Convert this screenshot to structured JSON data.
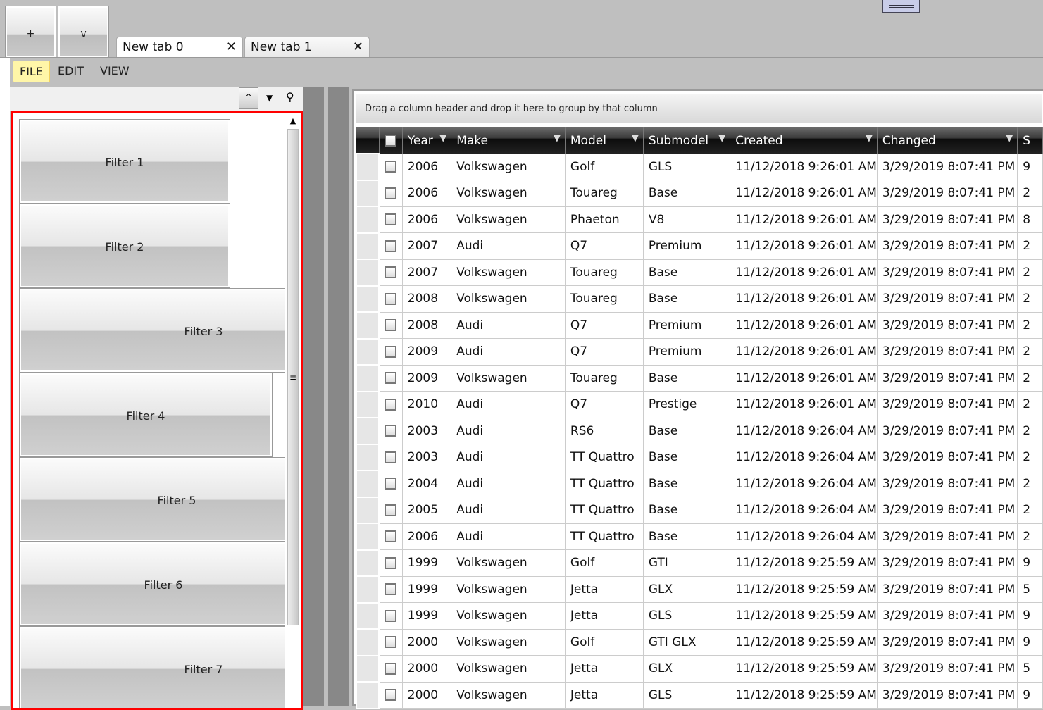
{
  "toolbar": {
    "add_label": "+",
    "dropdown_label": "v"
  },
  "tabs": [
    {
      "label": "New tab 0"
    },
    {
      "label": "New tab 1"
    }
  ],
  "menu": {
    "items": [
      {
        "label": "FILE"
      },
      {
        "label": "EDIT"
      },
      {
        "label": "VIEW"
      }
    ]
  },
  "panel": {
    "collapse_label": "^",
    "filters": [
      {
        "label": "Filter 1"
      },
      {
        "label": "Filter 2"
      },
      {
        "label": "Filter 3"
      },
      {
        "label": "Filter 4"
      },
      {
        "label": "Filter 5"
      },
      {
        "label": "Filter 6"
      },
      {
        "label": "Filter 7"
      }
    ]
  },
  "grid": {
    "group_hint": "Drag a column header and drop it here to group by that column",
    "columns": [
      "Year",
      "Make",
      "Model",
      "Submodel",
      "Created",
      "Changed",
      "S"
    ],
    "rows": [
      [
        "2006",
        "Volkswagen",
        "Golf",
        "GLS",
        "11/12/2018 9:26:01 AM",
        "3/29/2019 8:07:41 PM",
        "9"
      ],
      [
        "2006",
        "Volkswagen",
        "Touareg",
        "Base",
        "11/12/2018 9:26:01 AM",
        "3/29/2019 8:07:41 PM",
        "2"
      ],
      [
        "2006",
        "Volkswagen",
        "Phaeton",
        "V8",
        "11/12/2018 9:26:01 AM",
        "3/29/2019 8:07:41 PM",
        "8"
      ],
      [
        "2007",
        "Audi",
        "Q7",
        "Premium",
        "11/12/2018 9:26:01 AM",
        "3/29/2019 8:07:41 PM",
        "2"
      ],
      [
        "2007",
        "Volkswagen",
        "Touareg",
        "Base",
        "11/12/2018 9:26:01 AM",
        "3/29/2019 8:07:41 PM",
        "2"
      ],
      [
        "2008",
        "Volkswagen",
        "Touareg",
        "Base",
        "11/12/2018 9:26:01 AM",
        "3/29/2019 8:07:41 PM",
        "2"
      ],
      [
        "2008",
        "Audi",
        "Q7",
        "Premium",
        "11/12/2018 9:26:01 AM",
        "3/29/2019 8:07:41 PM",
        "2"
      ],
      [
        "2009",
        "Audi",
        "Q7",
        "Premium",
        "11/12/2018 9:26:01 AM",
        "3/29/2019 8:07:41 PM",
        "2"
      ],
      [
        "2009",
        "Volkswagen",
        "Touareg",
        "Base",
        "11/12/2018 9:26:01 AM",
        "3/29/2019 8:07:41 PM",
        "2"
      ],
      [
        "2010",
        "Audi",
        "Q7",
        "Prestige",
        "11/12/2018 9:26:01 AM",
        "3/29/2019 8:07:41 PM",
        "2"
      ],
      [
        "2003",
        "Audi",
        "RS6",
        "Base",
        "11/12/2018 9:26:04 AM",
        "3/29/2019 8:07:41 PM",
        "2"
      ],
      [
        "2003",
        "Audi",
        "TT Quattro",
        "Base",
        "11/12/2018 9:26:04 AM",
        "3/29/2019 8:07:41 PM",
        "2"
      ],
      [
        "2004",
        "Audi",
        "TT Quattro",
        "Base",
        "11/12/2018 9:26:04 AM",
        "3/29/2019 8:07:41 PM",
        "2"
      ],
      [
        "2005",
        "Audi",
        "TT Quattro",
        "Base",
        "11/12/2018 9:26:04 AM",
        "3/29/2019 8:07:41 PM",
        "2"
      ],
      [
        "2006",
        "Audi",
        "TT Quattro",
        "Base",
        "11/12/2018 9:26:04 AM",
        "3/29/2019 8:07:41 PM",
        "2"
      ],
      [
        "1999",
        "Volkswagen",
        "Golf",
        "GTI",
        "11/12/2018 9:25:59 AM",
        "3/29/2019 8:07:41 PM",
        "9"
      ],
      [
        "1999",
        "Volkswagen",
        "Jetta",
        "GLX",
        "11/12/2018 9:25:59 AM",
        "3/29/2019 8:07:41 PM",
        "5"
      ],
      [
        "1999",
        "Volkswagen",
        "Jetta",
        "GLS",
        "11/12/2018 9:25:59 AM",
        "3/29/2019 8:07:41 PM",
        "9"
      ],
      [
        "2000",
        "Volkswagen",
        "Golf",
        "GTI GLX",
        "11/12/2018 9:25:59 AM",
        "3/29/2019 8:07:41 PM",
        "9"
      ],
      [
        "2000",
        "Volkswagen",
        "Jetta",
        "GLX",
        "11/12/2018 9:25:59 AM",
        "3/29/2019 8:07:41 PM",
        "5"
      ],
      [
        "2000",
        "Volkswagen",
        "Jetta",
        "GLS",
        "11/12/2018 9:25:59 AM",
        "3/29/2019 8:07:41 PM",
        "9"
      ]
    ]
  },
  "colors": {
    "selection_border": "#ff0000",
    "menu_highlight": "#fff6a8",
    "header_bg": "#1a1a1a"
  }
}
